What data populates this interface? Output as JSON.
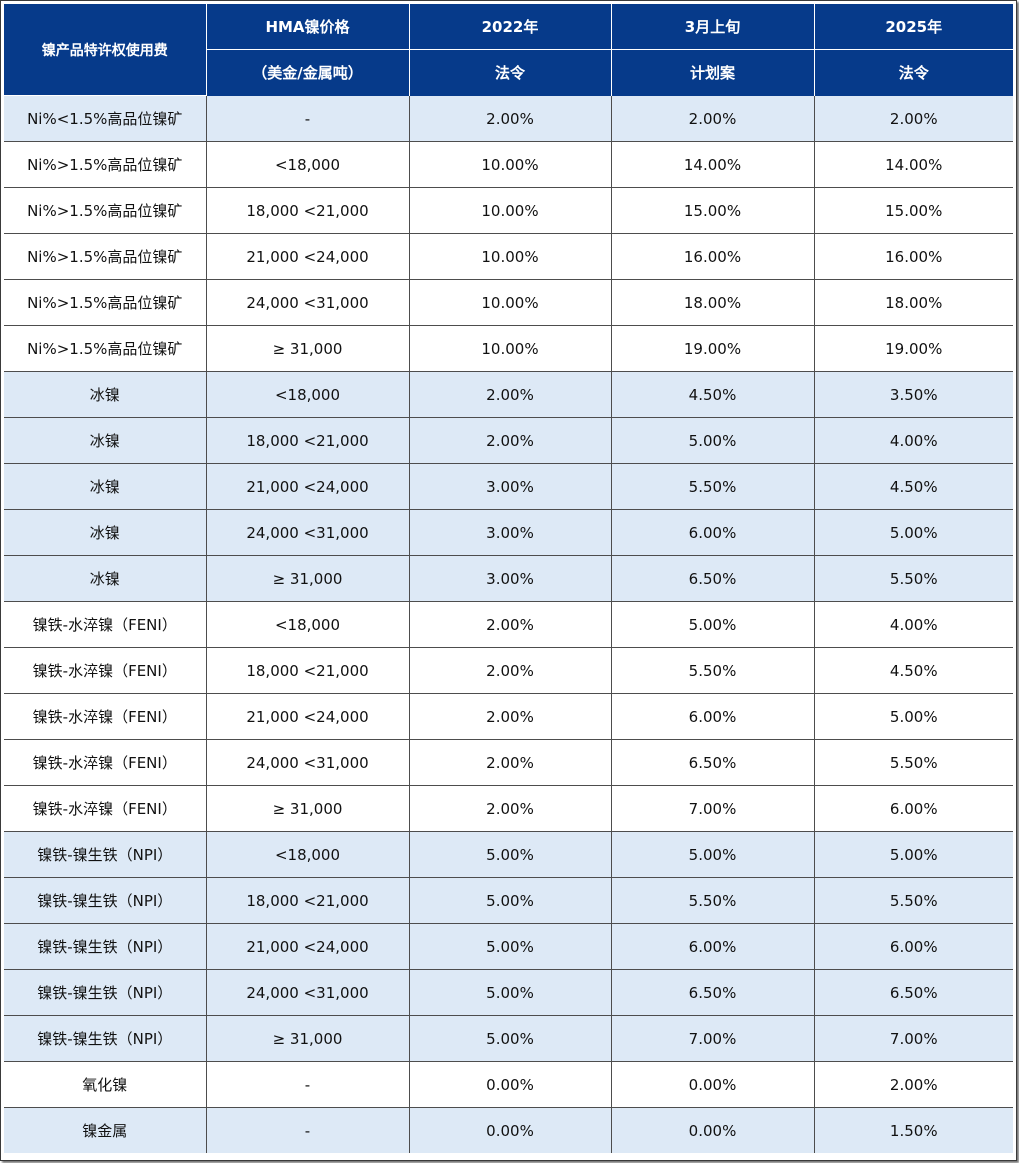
{
  "header": {
    "col0": "镍产品特许权使用费",
    "col1_top": "HMA镍价格",
    "col1_bottom": "（美金/金属吨）",
    "col2_top": "2022年",
    "col2_bottom": "法令",
    "col3_top": "3月上旬",
    "col3_bottom": "计划案",
    "col4_top": "2025年",
    "col4_bottom": "法令"
  },
  "rows": [
    {
      "product": "Ni%<1.5%高品位镍矿",
      "price": "-",
      "y2022": "2.00%",
      "march": "2.00%",
      "y2025": "2.00%",
      "shade": "#dde9f6"
    },
    {
      "product": "Ni%>1.5%高品位镍矿",
      "price": "<18,000",
      "y2022": "10.00%",
      "march": "14.00%",
      "y2025": "14.00%",
      "shade": "#ffffff"
    },
    {
      "product": "Ni%>1.5%高品位镍矿",
      "price": "18,000 <21,000",
      "y2022": "10.00%",
      "march": "15.00%",
      "y2025": "15.00%",
      "shade": "#ffffff"
    },
    {
      "product": "Ni%>1.5%高品位镍矿",
      "price": "21,000 <24,000",
      "y2022": "10.00%",
      "march": "16.00%",
      "y2025": "16.00%",
      "shade": "#ffffff"
    },
    {
      "product": "Ni%>1.5%高品位镍矿",
      "price": "24,000 <31,000",
      "y2022": "10.00%",
      "march": "18.00%",
      "y2025": "18.00%",
      "shade": "#ffffff"
    },
    {
      "product": "Ni%>1.5%高品位镍矿",
      "price": "≥ 31,000",
      "y2022": "10.00%",
      "march": "19.00%",
      "y2025": "19.00%",
      "shade": "#ffffff"
    },
    {
      "product": "冰镍",
      "price": "<18,000",
      "y2022": "2.00%",
      "march": "4.50%",
      "y2025": "3.50%",
      "shade": "#dde9f6"
    },
    {
      "product": "冰镍",
      "price": "18,000 <21,000",
      "y2022": "2.00%",
      "march": "5.00%",
      "y2025": "4.00%",
      "shade": "#dde9f6"
    },
    {
      "product": "冰镍",
      "price": "21,000 <24,000",
      "y2022": "3.00%",
      "march": "5.50%",
      "y2025": "4.50%",
      "shade": "#dde9f6"
    },
    {
      "product": "冰镍",
      "price": "24,000 <31,000",
      "y2022": "3.00%",
      "march": "6.00%",
      "y2025": "5.00%",
      "shade": "#dde9f6"
    },
    {
      "product": "冰镍",
      "price": "≥ 31,000",
      "y2022": "3.00%",
      "march": "6.50%",
      "y2025": "5.50%",
      "shade": "#dde9f6"
    },
    {
      "product": "镍铁-水淬镍（FENI）",
      "price": "<18,000",
      "y2022": "2.00%",
      "march": "5.00%",
      "y2025": "4.00%",
      "shade": "#ffffff"
    },
    {
      "product": "镍铁-水淬镍（FENI）",
      "price": "18,000 <21,000",
      "y2022": "2.00%",
      "march": "5.50%",
      "y2025": "4.50%",
      "shade": "#ffffff"
    },
    {
      "product": "镍铁-水淬镍（FENI）",
      "price": "21,000 <24,000",
      "y2022": "2.00%",
      "march": "6.00%",
      "y2025": "5.00%",
      "shade": "#ffffff"
    },
    {
      "product": "镍铁-水淬镍（FENI）",
      "price": "24,000 <31,000",
      "y2022": "2.00%",
      "march": "6.50%",
      "y2025": "5.50%",
      "shade": "#ffffff"
    },
    {
      "product": "镍铁-水淬镍（FENI）",
      "price": "≥ 31,000",
      "y2022": "2.00%",
      "march": "7.00%",
      "y2025": "6.00%",
      "shade": "#ffffff"
    },
    {
      "product": "镍铁-镍生铁（NPI）",
      "price": "<18,000",
      "y2022": "5.00%",
      "march": "5.00%",
      "y2025": "5.00%",
      "shade": "#dde9f6"
    },
    {
      "product": "镍铁-镍生铁（NPI）",
      "price": "18,000 <21,000",
      "y2022": "5.00%",
      "march": "5.50%",
      "y2025": "5.50%",
      "shade": "#dde9f6"
    },
    {
      "product": "镍铁-镍生铁（NPI）",
      "price": "21,000 <24,000",
      "y2022": "5.00%",
      "march": "6.00%",
      "y2025": "6.00%",
      "shade": "#dde9f6"
    },
    {
      "product": "镍铁-镍生铁（NPI）",
      "price": "24,000 <31,000",
      "y2022": "5.00%",
      "march": "6.50%",
      "y2025": "6.50%",
      "shade": "#dde9f6"
    },
    {
      "product": "镍铁-镍生铁（NPI）",
      "price": "≥ 31,000",
      "y2022": "5.00%",
      "march": "7.00%",
      "y2025": "7.00%",
      "shade": "#dde9f6"
    },
    {
      "product": "氧化镍",
      "price": "-",
      "y2022": "0.00%",
      "march": "0.00%",
      "y2025": "2.00%",
      "shade": "#ffffff"
    },
    {
      "product": "镍金属",
      "price": "-",
      "y2022": "0.00%",
      "march": "0.00%",
      "y2025": "1.50%",
      "shade": "#dde9f6"
    }
  ]
}
